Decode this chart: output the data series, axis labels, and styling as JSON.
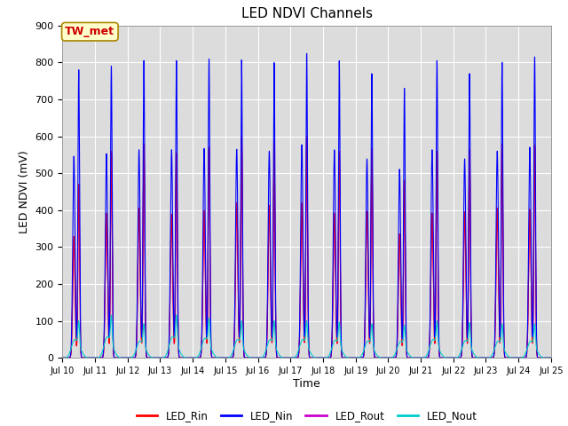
{
  "title": "LED NDVI Channels",
  "xlabel": "Time",
  "ylabel": "LED NDVI (mV)",
  "ylim": [
    0,
    900
  ],
  "xlim": [
    0,
    15
  ],
  "xtick_labels": [
    "Jul 10",
    "Jul 11",
    "Jul 12",
    "Jul 13",
    "Jul 14",
    "Jul 15",
    "Jul 16",
    "Jul 17",
    "Jul 18",
    "Jul 19",
    "Jul 20",
    "Jul 21",
    "Jul 22",
    "Jul 23",
    "Jul 24",
    "Jul 25"
  ],
  "legend_labels": [
    "LED_Rin",
    "LED_Nin",
    "LED_Rout",
    "LED_Nout"
  ],
  "legend_colors": [
    "#ff0000",
    "#0000ff",
    "#cc00cc",
    "#00cccc"
  ],
  "annotation_text": "TW_met",
  "annotation_color": "#cc0000",
  "annotation_bg": "#ffffcc",
  "plot_bg": "#dcdcdc",
  "line_width": 0.8,
  "num_days": 15,
  "peak_heights_Nin": [
    780,
    790,
    805,
    805,
    810,
    807,
    800,
    825,
    805,
    770,
    730,
    805,
    770,
    800,
    815
  ],
  "peak_heights_Rin": [
    470,
    560,
    580,
    555,
    570,
    600,
    590,
    600,
    560,
    567,
    480,
    560,
    565,
    580,
    575
  ],
  "peak_heights_Rout": [
    460,
    558,
    578,
    551,
    566,
    596,
    586,
    593,
    556,
    561,
    476,
    556,
    560,
    576,
    571
  ],
  "peak_heights_Nout": [
    65,
    75,
    60,
    75,
    70,
    65,
    65,
    65,
    63,
    60,
    58,
    65,
    62,
    60,
    60
  ],
  "peak_positions": [
    0.5,
    1.5,
    2.5,
    3.5,
    4.5,
    5.5,
    6.5,
    7.5,
    8.5,
    9.5,
    10.5,
    11.5,
    12.5,
    13.5,
    14.5
  ],
  "shoulder_offsets": [
    -0.15,
    -0.15,
    -0.15,
    -0.15,
    -0.15,
    -0.15,
    -0.15,
    -0.15,
    -0.15,
    -0.15,
    -0.15,
    -0.15,
    -0.15,
    -0.15,
    -0.15
  ],
  "shoulder_fracs_Nin": [
    0.7,
    0.7,
    0.7,
    0.7,
    0.7,
    0.7,
    0.7,
    0.7,
    0.7,
    0.7,
    0.7,
    0.7,
    0.7,
    0.7,
    0.7
  ],
  "shoulder_fracs_Rin": [
    0.7,
    0.7,
    0.7,
    0.7,
    0.7,
    0.7,
    0.7,
    0.7,
    0.7,
    0.7,
    0.7,
    0.7,
    0.7,
    0.7,
    0.7
  ]
}
